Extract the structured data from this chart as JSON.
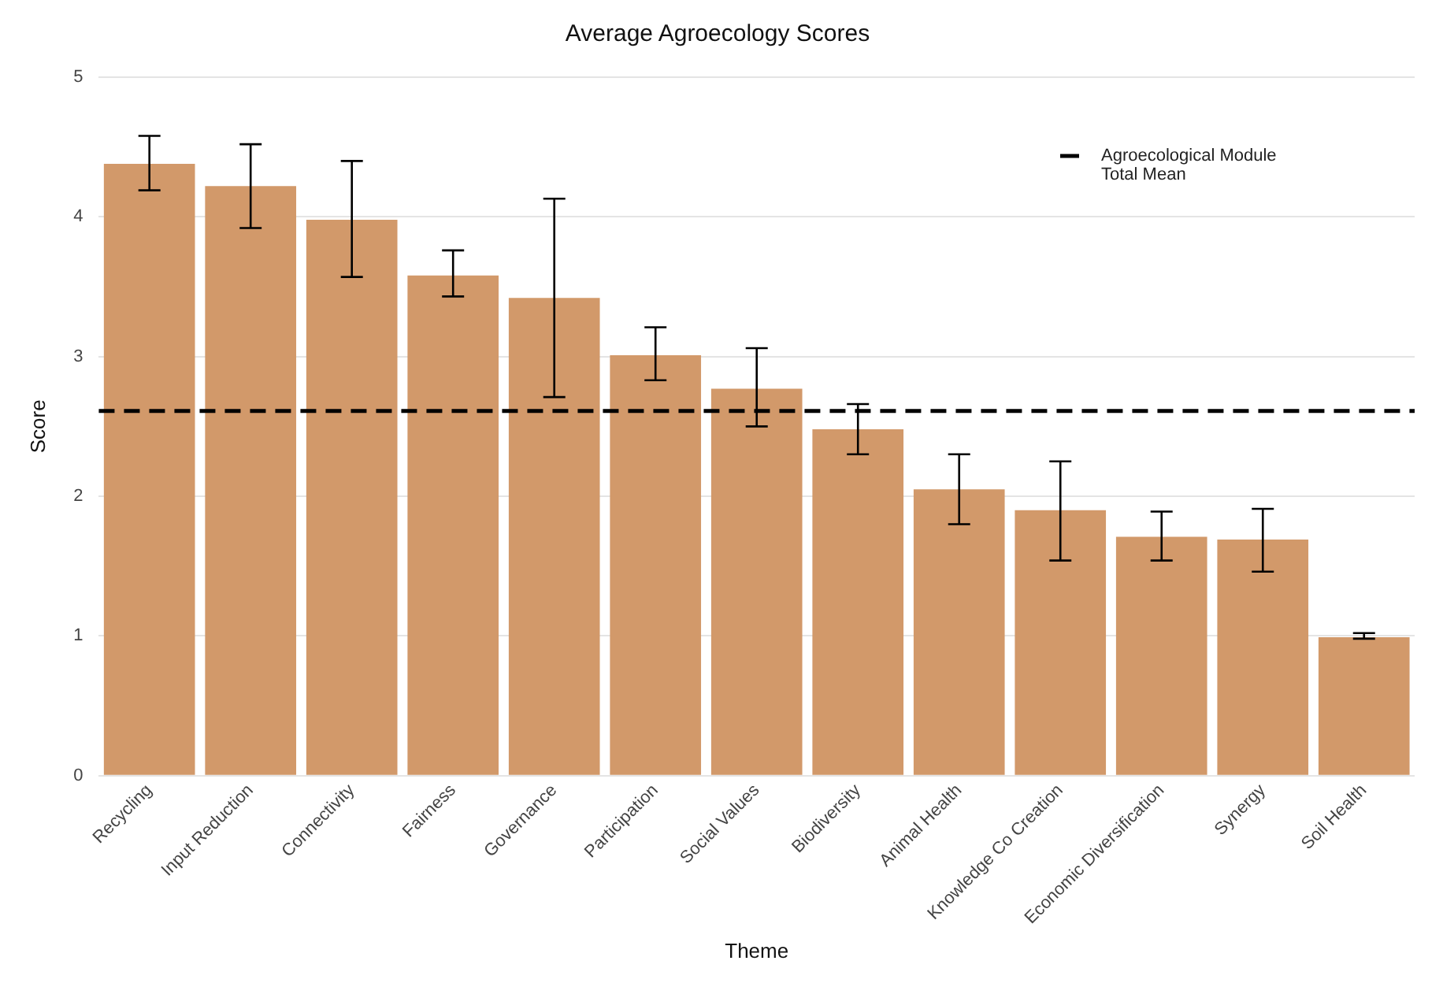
{
  "chart_data": {
    "type": "bar",
    "title": "Average Agroecology Scores",
    "xlabel": "Theme",
    "ylabel": "Score",
    "categories": [
      "Recycling",
      "Input Reduction",
      "Connectivity",
      "Fairness",
      "Governance",
      "Participation",
      "Social Values",
      "Biodiversity",
      "Animal Health",
      "Knowledge Co Creation",
      "Economic Diversification",
      "Synergy",
      "Soil Health"
    ],
    "values": [
      4.38,
      4.22,
      3.98,
      3.58,
      3.42,
      3.01,
      2.77,
      2.48,
      2.05,
      1.9,
      1.71,
      1.69,
      0.99
    ],
    "errors": [
      [
        4.19,
        4.58
      ],
      [
        3.92,
        4.52
      ],
      [
        3.57,
        4.4
      ],
      [
        3.43,
        3.76
      ],
      [
        2.71,
        4.13
      ],
      [
        2.83,
        3.21
      ],
      [
        2.5,
        3.06
      ],
      [
        2.3,
        2.66
      ],
      [
        1.8,
        2.3
      ],
      [
        1.54,
        2.25
      ],
      [
        1.54,
        1.89
      ],
      [
        1.46,
        1.91
      ],
      [
        0.98,
        1.02
      ]
    ],
    "color": "#d2996a",
    "ylim": [
      0,
      5
    ],
    "yticks": [
      0,
      1,
      2,
      3,
      4,
      5
    ],
    "grid": "y",
    "legend": "top right",
    "ref_lines": [
      {
        "axis": "y",
        "value": 2.61,
        "label": "Agroecological Module\nTotal Mean",
        "color": "#000000",
        "line_style": "dashed"
      }
    ]
  }
}
